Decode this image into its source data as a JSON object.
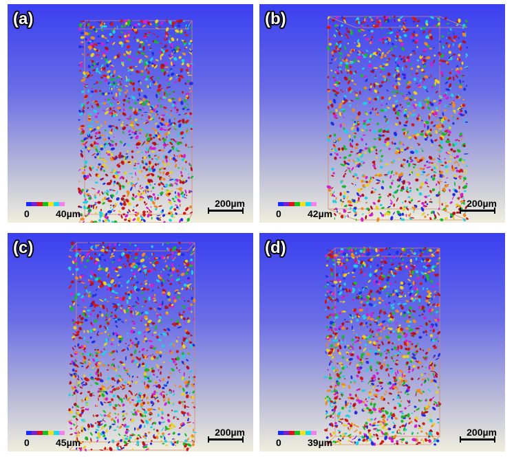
{
  "panels": [
    {
      "id": "a",
      "label": "(a)",
      "scale_min": "0",
      "scale_max": "40µm",
      "scale_bar": "200µm"
    },
    {
      "id": "b",
      "label": "(b)",
      "scale_min": "0",
      "scale_max": "42µm",
      "scale_bar": "200µm"
    },
    {
      "id": "c",
      "label": "(c)",
      "scale_min": "0",
      "scale_max": "45µm",
      "scale_bar": "200µm"
    },
    {
      "id": "d",
      "label": "(d)",
      "scale_min": "0",
      "scale_max": "39µm",
      "scale_bar": "200µm"
    }
  ],
  "colormap": [
    "#1a2bff",
    "#7a1fd0",
    "#e01020",
    "#18c020",
    "#f0e020",
    "#18d8f0",
    "#f080f0"
  ],
  "particle_colors": [
    "#d01818",
    "#b01020",
    "#18b828",
    "#e8d020",
    "#20d0e0",
    "#2030e0",
    "#f08820",
    "#d020d0"
  ],
  "box_color": "#d98a6a"
}
